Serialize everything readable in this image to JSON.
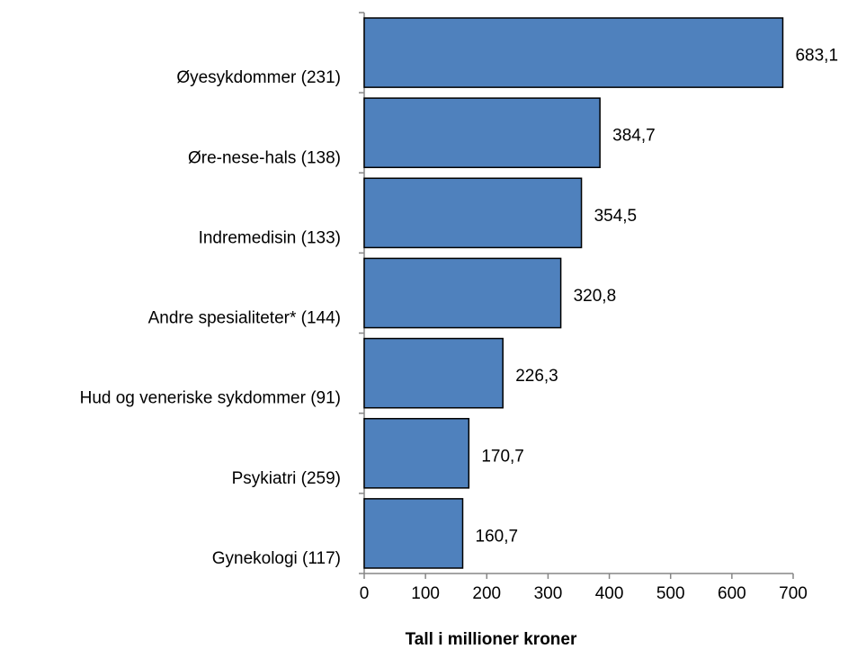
{
  "chart_data": {
    "type": "bar",
    "orientation": "horizontal",
    "x_label": "Tall i millioner kroner",
    "categories": [
      "Øyesykdommer (231)",
      "Øre-nese-hals (138)",
      "Indremedisin (133)",
      "Andre spesialiteter* (144)",
      "Hud og veneriske sykdommer (91)",
      "Psykiatri (259)",
      "Gynekologi (117)"
    ],
    "values": [
      683.1,
      384.7,
      354.5,
      320.8,
      226.3,
      170.7,
      160.7
    ],
    "value_labels": [
      "683,1",
      "384,7",
      "354,5",
      "320,8",
      "226,3",
      "170,7",
      "160,7"
    ],
    "color": "#4f81bd",
    "xlim": [
      0,
      700
    ],
    "xticks": [
      0,
      100,
      200,
      300,
      400,
      500,
      600,
      700
    ]
  }
}
